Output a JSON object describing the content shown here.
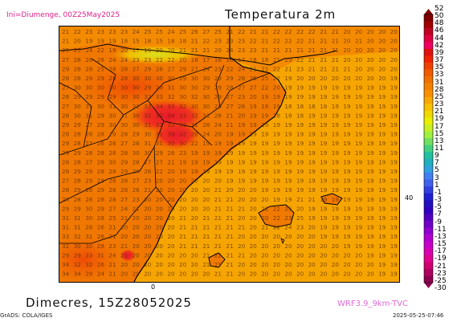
{
  "header": {
    "init_label": "Ini=Diumenge, 00Z25May2025",
    "title": "Temperatura 2m"
  },
  "footer": {
    "valid_label": "Dimecres, 15Z28052025",
    "model_label": "WRF3.9_9km-TVC",
    "credit": "GrADS: COLA/IGES",
    "timestamp": "2025-05-25-07:46"
  },
  "axes": {
    "lon_label": "0",
    "lat_label": "40"
  },
  "colorbar": {
    "labels": [
      "52",
      "50",
      "48",
      "46",
      "44",
      "42",
      "39",
      "37",
      "35",
      "33",
      "31",
      "28",
      "25",
      "23",
      "21",
      "19",
      "17",
      "15",
      "13",
      "11",
      "9",
      "7",
      "5",
      "3",
      "1",
      "-1",
      "-3",
      "-5",
      "-7",
      "-9",
      "-11",
      "-13",
      "-15",
      "-17",
      "-19",
      "-21",
      "-23",
      "-25",
      "-30"
    ],
    "colors": [
      "#800000",
      "#a00000",
      "#c00020",
      "#e00040",
      "#f00060",
      "#e01010",
      "#f02000",
      "#f04000",
      "#f05a00",
      "#f07000",
      "#f48000",
      "#f89000",
      "#f8a800",
      "#f8c000",
      "#f0d800",
      "#e8f000",
      "#c8f020",
      "#a0f040",
      "#70e060",
      "#40d080",
      "#20c0a0",
      "#20b0c0",
      "#30a0e0",
      "#4080f0",
      "#4060f0",
      "#3040e0",
      "#2020d0",
      "#2010c0",
      "#3000c0",
      "#5000c0",
      "#7000c8",
      "#9000d0",
      "#b000d0",
      "#c800c8",
      "#d800b0",
      "#e00090",
      "#d00070",
      "#b00060",
      "#900050"
    ]
  },
  "map_data": {
    "region": "NE Iberian Peninsula & Balearic Islands",
    "grid_rows": [
      "21 22 23 23 23 23 24 25 25 24 25 26 27 25 21 22 21 21 22 22 22 22 21 21 20 20 20 20 20",
      "21 20 19 19 19 18 15 18 15 18 18 21 22 23 23 23 22 21 22 22 22 21 21 21 20 21 20 20 20",
      "25 25 24 22 19 20 17 19 20 20 21 21 21 20 24 23 23 21 21 21 21 21 21 21 20 20 20 20 20",
      "27 28 28 28 24 24 23 23 22 22 20 18 17 16 16 17 18 18 21 29 22 21 21 21 20 20 20 20 20",
      "29 28 28 25 28 28 27 29 28 27 29 27 24 23 22 24 21 21 22 21 23 21 21 21 21 20 20 20 20",
      "28 28 29 29 28 28 30 30 30 30 29 30 30 29 29 28 26 25 22 19 20 20 20 20 20 20 20 20 19",
      "27 30 30 30 30 30 30 29 29 31 30 30 29 29 28 27 27 22 20 19 19 19 19 19 19 19 19 19 19",
      "28 29 29 29 29 30 30 32 33 32 30 32 30 29 27 23 20 19 19 19 19 19 19 19 19 19 19 19 19",
      "27 30 31 30 31 30 31 33 34 33 32 30 30 28 27 26 19 18 19 18 18 18 18 19 19 19 19 19 19",
      "28 30 31 29 30 31 30 32 33 34 33 32 31 26 21 20 19 19 18 18 18 19 19 19 19 19 19 19 19",
      "29 29 27 29 30 30 30 31 32 33 33 31 28 24 21 19 19 19 19 19 19 19 19 19 19 19 19 19 19",
      "28 28 28 28 29 28 29 30 31 34 32 28 24 20 19 19 19 19 19 19 19 19 19 19 19 19 19 19 19",
      "29 28 27 26 26 27 28 31 31 30 30 22 19 19 19 19 19 19 19 19 19 19 19 19 19 19 19 19 19",
      "29 29 28 28 28 28 30 30 29 26 23 19 19 19 19 19 19 19 19 19 19 19 19 19 19 19 19 19 19",
      "28 28 27 28 30 29 28 27 27 21 19 19 19 19 19 19 19 19 19 19 19 19 19 19 19 19 19 19 19",
      "28 29 29 28 28 29 28 26 22 20 19 19 19 19 19 19 19 19 19 19 19 19 19 19 19 19 19 19 19",
      "27 28 29 29 28 28 27 23 20 20 20 20 20 20 19 19 19 19 19 19 19 19 19 19 19 19 19 19 19",
      "28 29 28 29 28 28 26 21 20 20 20 20 20 21 20 20 20 19 19 19 19 19 19 19 19 19 19 19 19",
      "28 28 28 28 28 27 23 20 20 20 20 20 20 21 21 20 20 20 19 19 21 21 19 19 19 19 19 19 19",
      "29 29 30 29 27 24 21 20 20 20 20 20 20 21 21 21 20 21 22 25 20 19 19 19 19 19 19 19 19",
      "31 31 30 28 25 21 20 20 20 20 21 20 21 21 21 20 20 20 22 23 25 19 19 19 19 19 19 19 19",
      "31 31 28 26 21 20 20 20 20 20 21 21 21 21 21 21 20 21 22 24 23 20 19 19 19 19 19 19 19",
      "33 32 31 26 21 20 20 20 20 20 21 21 21 21 21 20 20 20 20 20 20 20 19 19 19 19 19 19 19",
      "32 30 30 28 23 21 20 20 20 20 21 21 21 21 21 20 20 20 20 20 20 20 20 20 19 19 19 19 19",
      "29 29 33 31 24 21 20 20 20 20 20 20 21 22 21 21 20 20 20 20 20 20 20 20 20 20 19 19 19",
      "34 32 32 26 21 20 20 20 20 20 20 20 21 21 21 20 20 20 20 20 20 20 20 20 20 20 20 19 19",
      "34 34 29 24 21 20 20 20 20 20 20 20 20 21 21 20 20 20 20 20 20 20 20 20 20 20 20 19 19"
    ]
  }
}
